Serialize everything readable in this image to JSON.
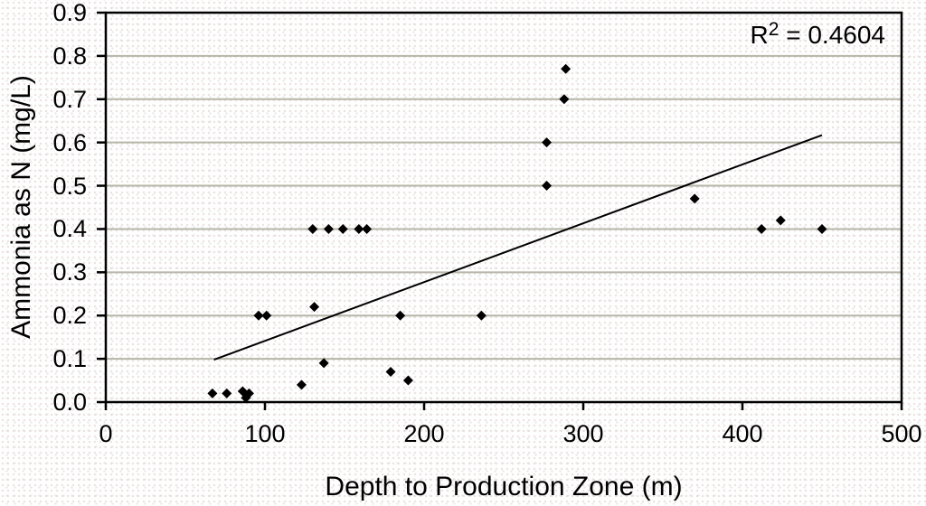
{
  "figure": {
    "annotation": {
      "base": "R",
      "sup": "2",
      "rest": " = 0.4604"
    }
  },
  "chart_data": {
    "type": "scatter",
    "title": "",
    "xlabel": "Depth to Production Zone (m)",
    "ylabel": "Ammonia as N (mg/L)",
    "xlim": [
      0,
      500
    ],
    "ylim": [
      0,
      0.9
    ],
    "xticks": [
      0,
      100,
      200,
      300,
      400,
      500
    ],
    "xtick_labels": [
      "0",
      "100",
      "200",
      "300",
      "400",
      "500"
    ],
    "ytick_labels": [
      "0.0",
      "0.1",
      "0.2",
      "0.3",
      "0.4",
      "0.5",
      "0.6",
      "0.7",
      "0.8",
      "0.9"
    ],
    "grid": "horizontal-only",
    "legend": "none",
    "marker": "diamond",
    "r2": 0.4604,
    "points": [
      [
        67,
        0.02
      ],
      [
        76,
        0.02
      ],
      [
        86,
        0.025
      ],
      [
        88,
        0.01
      ],
      [
        90,
        0.02
      ],
      [
        96,
        0.2
      ],
      [
        101,
        0.2
      ],
      [
        123,
        0.04
      ],
      [
        131,
        0.22
      ],
      [
        137,
        0.09
      ],
      [
        130,
        0.4
      ],
      [
        140,
        0.4
      ],
      [
        149,
        0.4
      ],
      [
        159,
        0.4
      ],
      [
        164,
        0.4
      ],
      [
        179,
        0.07
      ],
      [
        185,
        0.2
      ],
      [
        190,
        0.05
      ],
      [
        236,
        0.2
      ],
      [
        277,
        0.5
      ],
      [
        277,
        0.6
      ],
      [
        288,
        0.7
      ],
      [
        289,
        0.77
      ],
      [
        370,
        0.47
      ],
      [
        412,
        0.4
      ],
      [
        424,
        0.42
      ],
      [
        450,
        0.4
      ]
    ],
    "trendline": {
      "x1": 68,
      "y1": 0.098,
      "x2": 450,
      "y2": 0.617
    },
    "colors": {
      "marker": "#000000",
      "trendline": "#000000",
      "gridline": "#b6b6a8",
      "axis": "#000000",
      "text": "#000000"
    }
  }
}
